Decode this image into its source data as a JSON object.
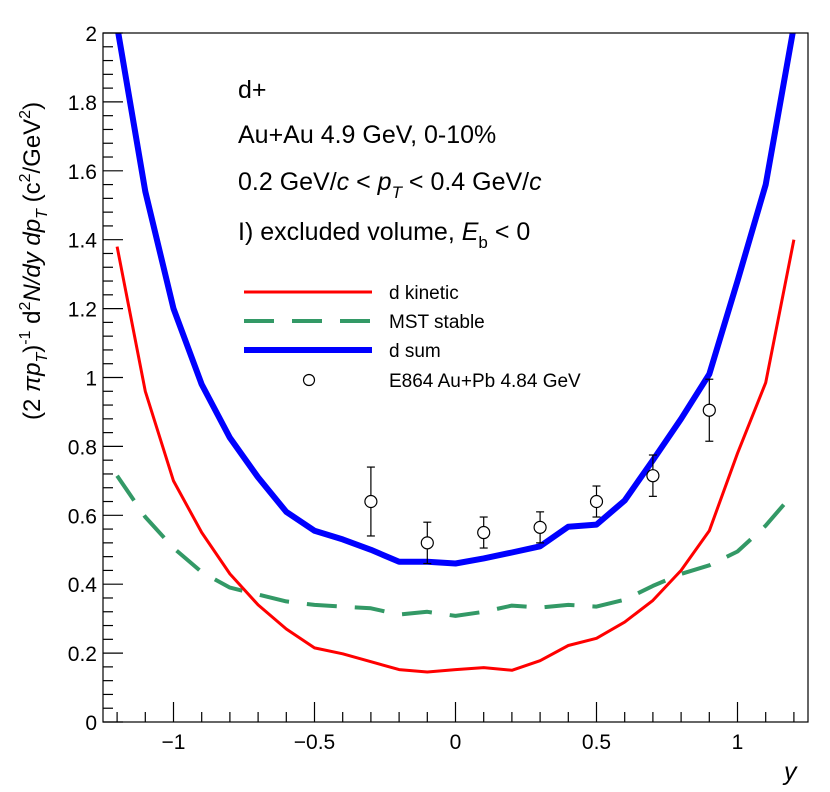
{
  "chart_data": {
    "type": "line",
    "title": "",
    "xlabel": "y",
    "ylabel_parts": {
      "open": "(2 ",
      "pi": "π",
      "p": "p",
      "T": "T",
      "close_inv": ")",
      "inv": "-1",
      "d": " d",
      "two": "2",
      "N": "N",
      "slash_dy": "/dy",
      "dp": "  dp",
      "unit_open": "  (c",
      "unit_two": "2",
      "unit_mid": "/GeV",
      "unit_close": ")"
    },
    "xlim": [
      -1.25,
      1.25
    ],
    "ylim": [
      0,
      2
    ],
    "xticks": [
      -1,
      -0.5,
      0,
      0.5,
      1
    ],
    "xtick_labels": [
      "−1",
      "−0.5",
      "0",
      "0.5",
      "1"
    ],
    "yticks": [
      0,
      0.2,
      0.4,
      0.6,
      0.8,
      1,
      1.2,
      1.4,
      1.6,
      1.8,
      2
    ],
    "ytick_labels": [
      "0",
      "0.2",
      "0.4",
      "0.6",
      "0.8",
      "1",
      "1.2",
      "1.4",
      "1.6",
      "1.8",
      "2"
    ],
    "annotations": {
      "line1": "d+",
      "line2": "Au+Au 4.9 GeV, 0-10%",
      "line3_a": "0.2 GeV/",
      "line3_c1": "c",
      "line3_b": " < ",
      "line3_p": "p",
      "line3_T": "T",
      "line3_c": " < 0.4 GeV/",
      "line3_c2": "c",
      "line4_a": "I) excluded volume, ",
      "line4_E": "E",
      "line4_b": "b",
      "line4_c": " < 0"
    },
    "series": [
      {
        "name": "d kinetic",
        "color": "#ff0000",
        "style": "solid",
        "x": [
          -1.2,
          -1.1,
          -1.0,
          -0.9,
          -0.8,
          -0.7,
          -0.6,
          -0.5,
          -0.4,
          -0.3,
          -0.2,
          -0.1,
          0.0,
          0.1,
          0.2,
          0.3,
          0.4,
          0.5,
          0.6,
          0.7,
          0.8,
          0.9,
          1.0,
          1.1,
          1.2
        ],
        "y": [
          1.38,
          0.96,
          0.7,
          0.55,
          0.43,
          0.34,
          0.27,
          0.215,
          0.198,
          0.175,
          0.152,
          0.145,
          0.152,
          0.158,
          0.15,
          0.178,
          0.222,
          0.243,
          0.29,
          0.353,
          0.44,
          0.555,
          0.78,
          0.985,
          1.4
        ]
      },
      {
        "name": "MST stable",
        "color": "#339966",
        "style": "dashed",
        "x": [
          -1.2,
          -1.1,
          -1.0,
          -0.9,
          -0.8,
          -0.7,
          -0.6,
          -0.5,
          -0.4,
          -0.3,
          -0.2,
          -0.1,
          0.0,
          0.1,
          0.2,
          0.3,
          0.4,
          0.5,
          0.6,
          0.7,
          0.8,
          0.9,
          1.0,
          1.1,
          1.2
        ],
        "y": [
          0.715,
          0.595,
          0.505,
          0.435,
          0.39,
          0.37,
          0.35,
          0.34,
          0.335,
          0.33,
          0.312,
          0.32,
          0.308,
          0.32,
          0.338,
          0.332,
          0.34,
          0.335,
          0.355,
          0.395,
          0.43,
          0.455,
          0.495,
          0.57,
          0.665
        ]
      },
      {
        "name": "d sum",
        "color": "#0000ff",
        "style": "solid-thick",
        "x": [
          -1.2,
          -1.1,
          -1.0,
          -0.9,
          -0.8,
          -0.7,
          -0.6,
          -0.5,
          -0.4,
          -0.3,
          -0.2,
          -0.1,
          0.0,
          0.1,
          0.2,
          0.3,
          0.4,
          0.5,
          0.6,
          0.7,
          0.8,
          0.9,
          1.0,
          1.1,
          1.2
        ],
        "y": [
          2.02,
          1.54,
          1.2,
          0.98,
          0.825,
          0.71,
          0.61,
          0.555,
          0.53,
          0.5,
          0.465,
          0.465,
          0.46,
          0.475,
          0.492,
          0.51,
          0.567,
          0.573,
          0.643,
          0.76,
          0.88,
          1.01,
          1.28,
          1.56,
          2.02
        ]
      }
    ],
    "points": {
      "name": "E864 Au+Pb 4.84 GeV",
      "x": [
        -0.3,
        -0.1,
        0.1,
        0.3,
        0.5,
        0.7,
        0.9
      ],
      "y": [
        0.64,
        0.52,
        0.55,
        0.565,
        0.64,
        0.715,
        0.905
      ],
      "err": [
        0.1,
        0.06,
        0.045,
        0.045,
        0.045,
        0.06,
        0.09
      ]
    },
    "legend": {
      "placement": "upper-left",
      "entries": [
        "d kinetic",
        "MST stable",
        "d sum",
        "E864 Au+Pb 4.84 GeV"
      ]
    }
  }
}
